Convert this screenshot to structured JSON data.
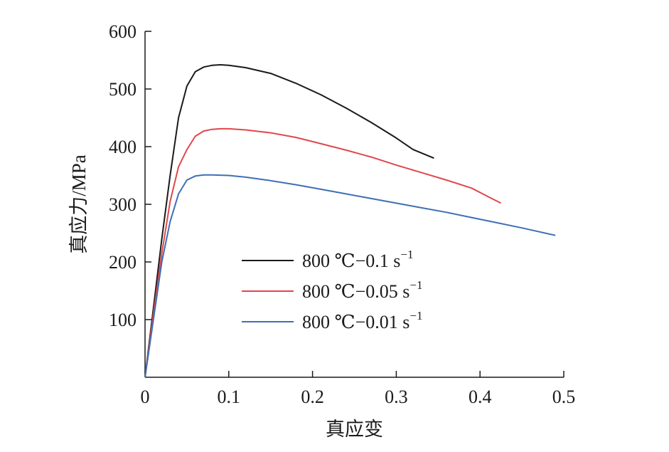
{
  "chart_data": {
    "type": "line",
    "title": "",
    "xlabel": "真应变",
    "ylabel": "真应力/MPa",
    "xlim": [
      0,
      0.5
    ],
    "ylim": [
      0,
      600
    ],
    "x_ticks": [
      0,
      0.1,
      0.2,
      0.3,
      0.4,
      0.5
    ],
    "x_tick_labels": [
      "0",
      "0.1",
      "0.2",
      "0.3",
      "0.4",
      "0.5"
    ],
    "y_ticks": [
      100,
      200,
      300,
      400,
      500,
      600
    ],
    "y_tick_labels": [
      "100",
      "200",
      "300",
      "400",
      "500",
      "600"
    ],
    "grid": false,
    "legend_position": "center-left",
    "series": [
      {
        "name": "800 ℃−0.1 s",
        "name_superscript": "−1",
        "color": "#1a1a1a",
        "x": [
          0,
          0.01,
          0.02,
          0.03,
          0.04,
          0.05,
          0.06,
          0.07,
          0.08,
          0.09,
          0.1,
          0.12,
          0.15,
          0.18,
          0.21,
          0.24,
          0.27,
          0.3,
          0.32,
          0.345
        ],
        "y": [
          0,
          120,
          240,
          350,
          450,
          505,
          530,
          538,
          541,
          542,
          541,
          537,
          527,
          510,
          490,
          467,
          442,
          415,
          395,
          380
        ]
      },
      {
        "name": "800 ℃−0.05 s",
        "name_superscript": "−1",
        "color": "#e0474c",
        "x": [
          0,
          0.01,
          0.02,
          0.03,
          0.04,
          0.05,
          0.06,
          0.07,
          0.08,
          0.09,
          0.1,
          0.12,
          0.15,
          0.18,
          0.21,
          0.24,
          0.27,
          0.3,
          0.33,
          0.36,
          0.39,
          0.41,
          0.425
        ],
        "y": [
          0,
          110,
          215,
          305,
          365,
          395,
          418,
          427,
          430,
          431,
          431,
          429,
          424,
          416,
          405,
          394,
          382,
          368,
          355,
          342,
          328,
          313,
          302
        ]
      },
      {
        "name": "800 ℃−0.01 s",
        "name_superscript": "−1",
        "color": "#3f6fb5",
        "x": [
          0,
          0.01,
          0.02,
          0.03,
          0.04,
          0.05,
          0.06,
          0.07,
          0.08,
          0.1,
          0.12,
          0.15,
          0.18,
          0.21,
          0.24,
          0.27,
          0.3,
          0.33,
          0.36,
          0.39,
          0.42,
          0.45,
          0.49
        ],
        "y": [
          0,
          100,
          200,
          270,
          318,
          342,
          349,
          351,
          351,
          350,
          347,
          341,
          334,
          326,
          318,
          310,
          302,
          294,
          286,
          277,
          268,
          259,
          246
        ]
      }
    ]
  }
}
